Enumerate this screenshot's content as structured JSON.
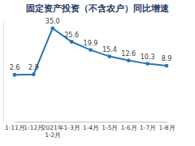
{
  "chart_data": {
    "type": "line",
    "title": "固定资产投资（不含农户）同比增速",
    "categories": [
      "1-11月",
      "1-12月",
      "2021年 1-2月",
      "1-3月",
      "1-4月",
      "1-5月",
      "1-6月",
      "1-7月",
      "1-8月"
    ],
    "values": [
      2.6,
      2.9,
      35.0,
      25.6,
      19.9,
      15.4,
      12.6,
      10.3,
      8.9
    ],
    "color": "#2e75b6",
    "marker": "circle",
    "ylim": [
      -30,
      40
    ],
    "data_labels": true,
    "tick_labels": "x"
  }
}
